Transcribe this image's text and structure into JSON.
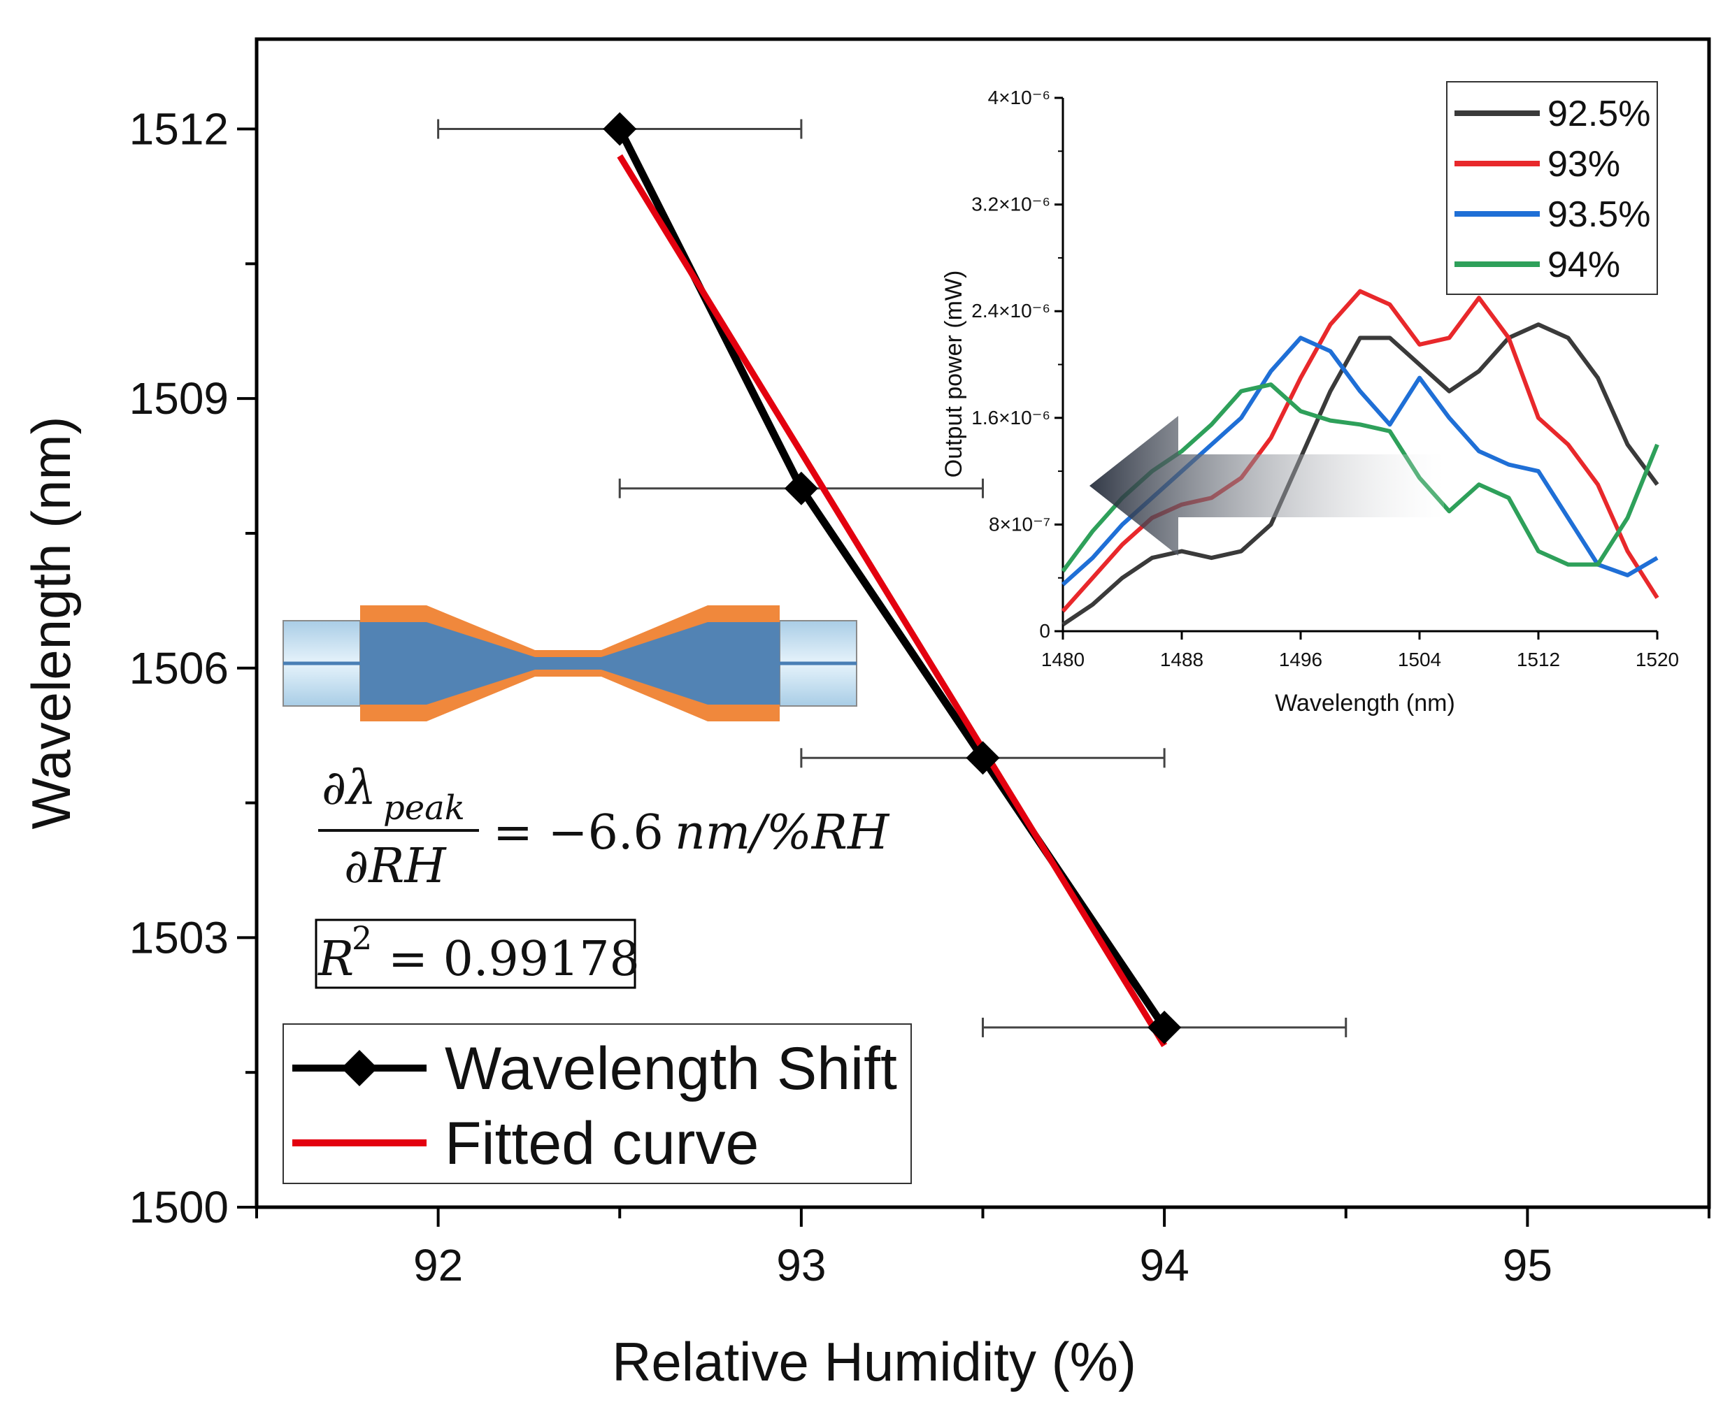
{
  "chart_data": [
    {
      "type": "line",
      "name": "main",
      "xlabel": "Relative Humidity (%)",
      "ylabel": "Wavelength (nm)",
      "xlim": [
        91.5,
        95.5
      ],
      "ylim": [
        1500,
        1513
      ],
      "xticks": [
        92,
        93,
        94,
        95
      ],
      "yticks": [
        1500,
        1503,
        1506,
        1509,
        1512
      ],
      "series": [
        {
          "name": "Wavelength Shift",
          "color": "#000000",
          "marker": "diamond",
          "x": [
            92.5,
            93,
            93.5,
            94
          ],
          "y": [
            1512,
            1508,
            1505,
            1502
          ],
          "xerr": [
            0.5,
            0.5,
            0.5,
            0.5
          ]
        },
        {
          "name": "Fitted curve",
          "color": "#e3000f",
          "x": [
            92.5,
            94
          ],
          "y": [
            1511.7,
            1501.8
          ]
        }
      ],
      "legend": {
        "position": "bottom-left"
      },
      "annotations": {
        "slope_numerator": "∂λ",
        "slope_subscript": "peak",
        "slope_denominator": "∂RH",
        "slope_equals": "= −6.6",
        "slope_unit": "nm/%RH",
        "r2_prefix": "R",
        "r2_exponent": "2",
        "r2_value": "= 0.99178"
      }
    },
    {
      "type": "line",
      "name": "inset",
      "xlabel": "Wavelength (nm)",
      "ylabel": "Output power (mW)",
      "xlim": [
        1480,
        1520
      ],
      "ylim": [
        0,
        4e-06
      ],
      "xticks": [
        "1480",
        "1488",
        "1496",
        "1504",
        "1512",
        "1520"
      ],
      "ytick_values": [
        0,
        8e-07,
        1.6e-06,
        2.4e-06,
        3.2e-06,
        4e-06
      ],
      "ytick_labels": [
        "0",
        "8×10⁻⁷",
        "1.6×10⁻⁶",
        "2.4×10⁻⁶",
        "3.2×10⁻⁶",
        "4×10⁻⁶"
      ],
      "legend": {
        "position": "top-right"
      },
      "series": [
        {
          "name": "92.5%",
          "color": "#3a3a3a",
          "x": [
            1480,
            1482,
            1484,
            1486,
            1488,
            1490,
            1492,
            1494,
            1496,
            1498,
            1500,
            1502,
            1504,
            1506,
            1508,
            1510,
            1512,
            1514,
            1516,
            1518,
            1520
          ],
          "y": [
            5e-08,
            2e-07,
            4e-07,
            5.5e-07,
            6e-07,
            5.5e-07,
            6e-07,
            8e-07,
            1.3e-06,
            1.8e-06,
            2.2e-06,
            2.2e-06,
            2e-06,
            1.8e-06,
            1.95e-06,
            2.2e-06,
            2.3e-06,
            2.2e-06,
            1.9e-06,
            1.4e-06,
            1.1e-06
          ]
        },
        {
          "name": "93%",
          "color": "#e8282b",
          "x": [
            1480,
            1482,
            1484,
            1486,
            1488,
            1490,
            1492,
            1494,
            1496,
            1498,
            1500,
            1502,
            1504,
            1506,
            1508,
            1510,
            1512,
            1514,
            1516,
            1518,
            1520
          ],
          "y": [
            1.5e-07,
            4e-07,
            6.5e-07,
            8.5e-07,
            9.5e-07,
            1e-06,
            1.15e-06,
            1.45e-06,
            1.9e-06,
            2.3e-06,
            2.55e-06,
            2.45e-06,
            2.15e-06,
            2.2e-06,
            2.5e-06,
            2.2e-06,
            1.6e-06,
            1.4e-06,
            1.1e-06,
            6e-07,
            2.5e-07
          ]
        },
        {
          "name": "93.5%",
          "color": "#1f6fd6",
          "x": [
            1480,
            1482,
            1484,
            1486,
            1488,
            1490,
            1492,
            1494,
            1496,
            1498,
            1500,
            1502,
            1504,
            1506,
            1508,
            1510,
            1512,
            1514,
            1516,
            1518,
            1520
          ],
          "y": [
            3.5e-07,
            5.5e-07,
            8e-07,
            1e-06,
            1.2e-06,
            1.4e-06,
            1.6e-06,
            1.95e-06,
            2.2e-06,
            2.1e-06,
            1.8e-06,
            1.55e-06,
            1.9e-06,
            1.6e-06,
            1.35e-06,
            1.25e-06,
            1.2e-06,
            8.5e-07,
            5e-07,
            4.2e-07,
            5.5e-07
          ]
        },
        {
          "name": "94%",
          "color": "#2ea05a",
          "x": [
            1480,
            1482,
            1484,
            1486,
            1488,
            1490,
            1492,
            1494,
            1496,
            1498,
            1500,
            1502,
            1504,
            1506,
            1508,
            1510,
            1512,
            1514,
            1516,
            1518,
            1520
          ],
          "y": [
            4.5e-07,
            7.5e-07,
            1e-06,
            1.2e-06,
            1.35e-06,
            1.55e-06,
            1.8e-06,
            1.85e-06,
            1.65e-06,
            1.58e-06,
            1.55e-06,
            1.5e-06,
            1.15e-06,
            9e-07,
            1.1e-06,
            1e-06,
            6e-07,
            5e-07,
            5e-07,
            8.5e-07,
            1.4e-06
          ]
        }
      ]
    }
  ]
}
